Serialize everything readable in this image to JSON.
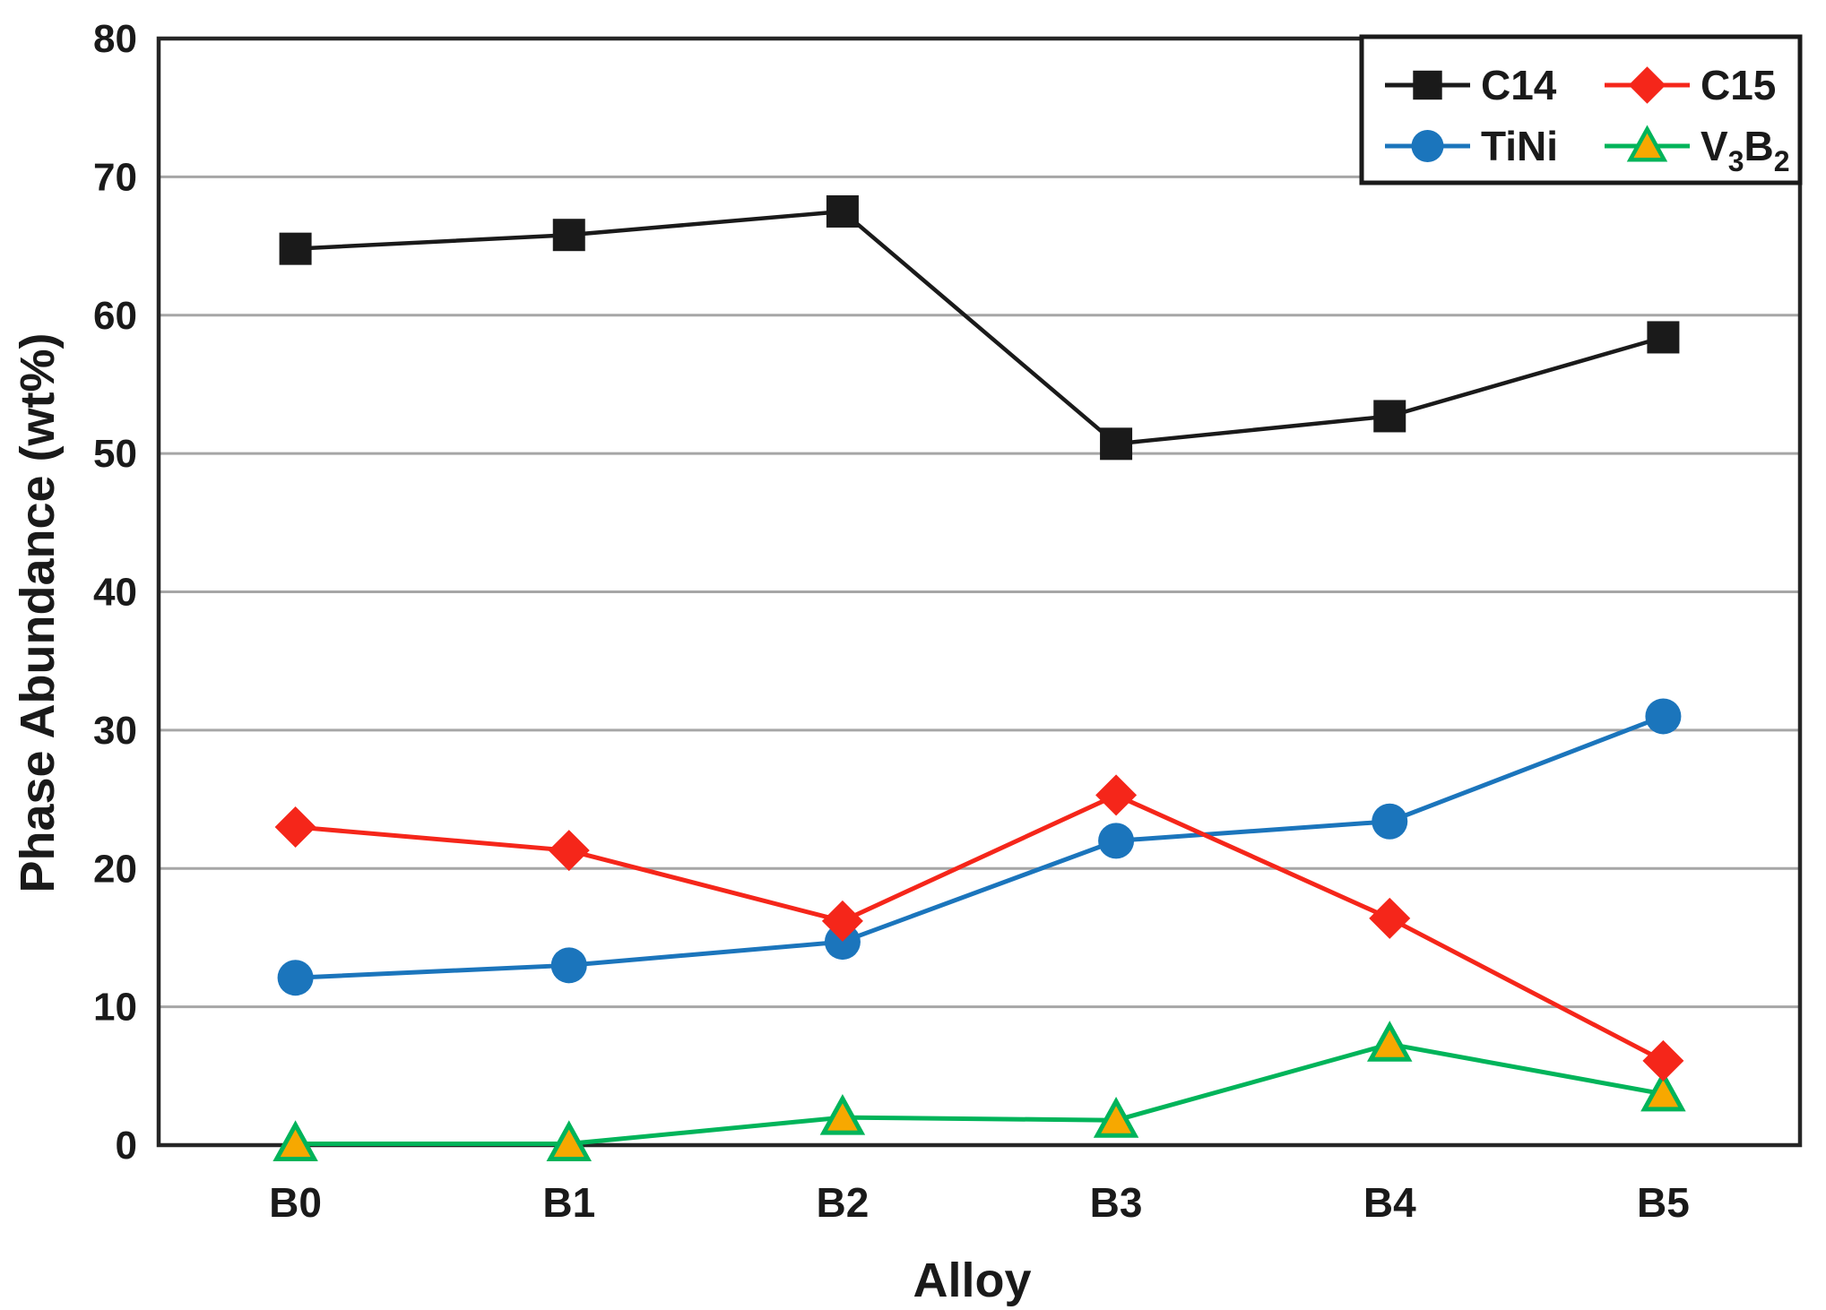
{
  "figure": {
    "background": "#ffffff"
  },
  "chart_data": {
    "type": "line",
    "title": "",
    "xlabel": "Alloy",
    "ylabel": "Phase Abundance (wt%)",
    "categories": [
      "B0",
      "B1",
      "B2",
      "B3",
      "B4",
      "B5"
    ],
    "ylim": [
      0,
      80
    ],
    "y_ticks": [
      0,
      10,
      20,
      30,
      40,
      50,
      60,
      70,
      80
    ],
    "grid": "horizontal",
    "legend_position": "top-right-inside",
    "legend_columns": 2,
    "series": [
      {
        "name": "C14",
        "label_rich": [
          {
            "t": "C14"
          }
        ],
        "marker": "square",
        "color": "#1a1a1a",
        "marker_fill": "#1a1a1a",
        "marker_stroke": "none",
        "values": [
          64.8,
          65.8,
          67.5,
          50.7,
          52.7,
          58.4
        ]
      },
      {
        "name": "C15",
        "label_rich": [
          {
            "t": "C15"
          }
        ],
        "marker": "diamond",
        "color": "#f5261a",
        "marker_fill": "#f5261a",
        "marker_stroke": "none",
        "values": [
          23.0,
          21.3,
          16.2,
          25.3,
          16.4,
          6.1
        ]
      },
      {
        "name": "TiNi",
        "label_rich": [
          {
            "t": "TiNi"
          }
        ],
        "marker": "circle",
        "color": "#1b75bc",
        "marker_fill": "#1b75bc",
        "marker_stroke": "none",
        "values": [
          12.1,
          13.0,
          14.7,
          22.0,
          23.4,
          31.0
        ]
      },
      {
        "name": "V3B2",
        "label_rich": [
          {
            "t": "V"
          },
          {
            "t": "3",
            "sub": true
          },
          {
            "t": "B"
          },
          {
            "t": "2",
            "sub": true
          }
        ],
        "marker": "triangle",
        "color": "#00b45a",
        "marker_fill": "#f7a800",
        "marker_stroke": "#00b45a",
        "values": [
          0.1,
          0.1,
          2.0,
          1.8,
          7.3,
          3.7
        ]
      }
    ],
    "z_order": [
      "TiNi",
      "V3B2",
      "C15",
      "C14"
    ],
    "colors": {
      "grid": "#a6a6a6",
      "axis": "#262626",
      "text": "#1a1a1a",
      "legend_border": "#1a1a1a",
      "legend_fill": "#ffffff",
      "background": "#ffffff"
    }
  }
}
